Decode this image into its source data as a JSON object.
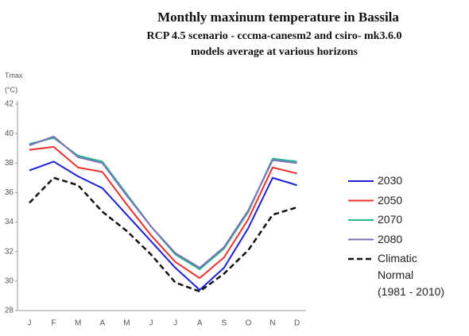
{
  "chart_data": {
    "type": "line",
    "title": "Monthly maxinum  temperature in Bassila",
    "subtitle": "RCP 4.5 scenario - cccma-canesm2 and csiro- mk3.6.0\nmodels average at various horizons",
    "y_label": "Tmax\n(°C)",
    "categories": [
      "J",
      "F",
      "M",
      "A",
      "M",
      "J",
      "J",
      "A",
      "S",
      "O",
      "N",
      "D"
    ],
    "ylim": [
      28,
      42
    ],
    "yticks": [
      28,
      30,
      32,
      34,
      36,
      38,
      40,
      42
    ],
    "legend": "right",
    "series": [
      {
        "name": "2030",
        "color": "#1f1fd6",
        "values": [
          37.5,
          38.1,
          37.1,
          36.3,
          34.5,
          32.7,
          30.9,
          29.4,
          30.9,
          33.6,
          37.0,
          36.5
        ]
      },
      {
        "name": "2050",
        "color": "#e8322b",
        "values": [
          38.9,
          39.1,
          37.7,
          37.4,
          35.2,
          33.1,
          31.3,
          30.2,
          31.6,
          34.2,
          37.7,
          37.3
        ]
      },
      {
        "name": "2070",
        "color": "#2bb58a",
        "values": [
          39.3,
          39.7,
          38.5,
          38.1,
          35.9,
          33.7,
          31.8,
          30.8,
          32.2,
          34.7,
          38.3,
          38.1
        ]
      },
      {
        "name": "2080",
        "color": "#7a70b8",
        "values": [
          39.2,
          39.8,
          38.4,
          38.0,
          35.8,
          33.7,
          31.9,
          30.9,
          32.3,
          34.8,
          38.2,
          38.0
        ]
      },
      {
        "name": "Climatic\nNormal\n(1981 - 2010)",
        "color": "#111111",
        "dashed": true,
        "values": [
          35.3,
          37.0,
          36.5,
          34.7,
          33.4,
          31.8,
          29.9,
          29.3,
          30.5,
          32.1,
          34.5,
          35.0
        ]
      }
    ]
  }
}
